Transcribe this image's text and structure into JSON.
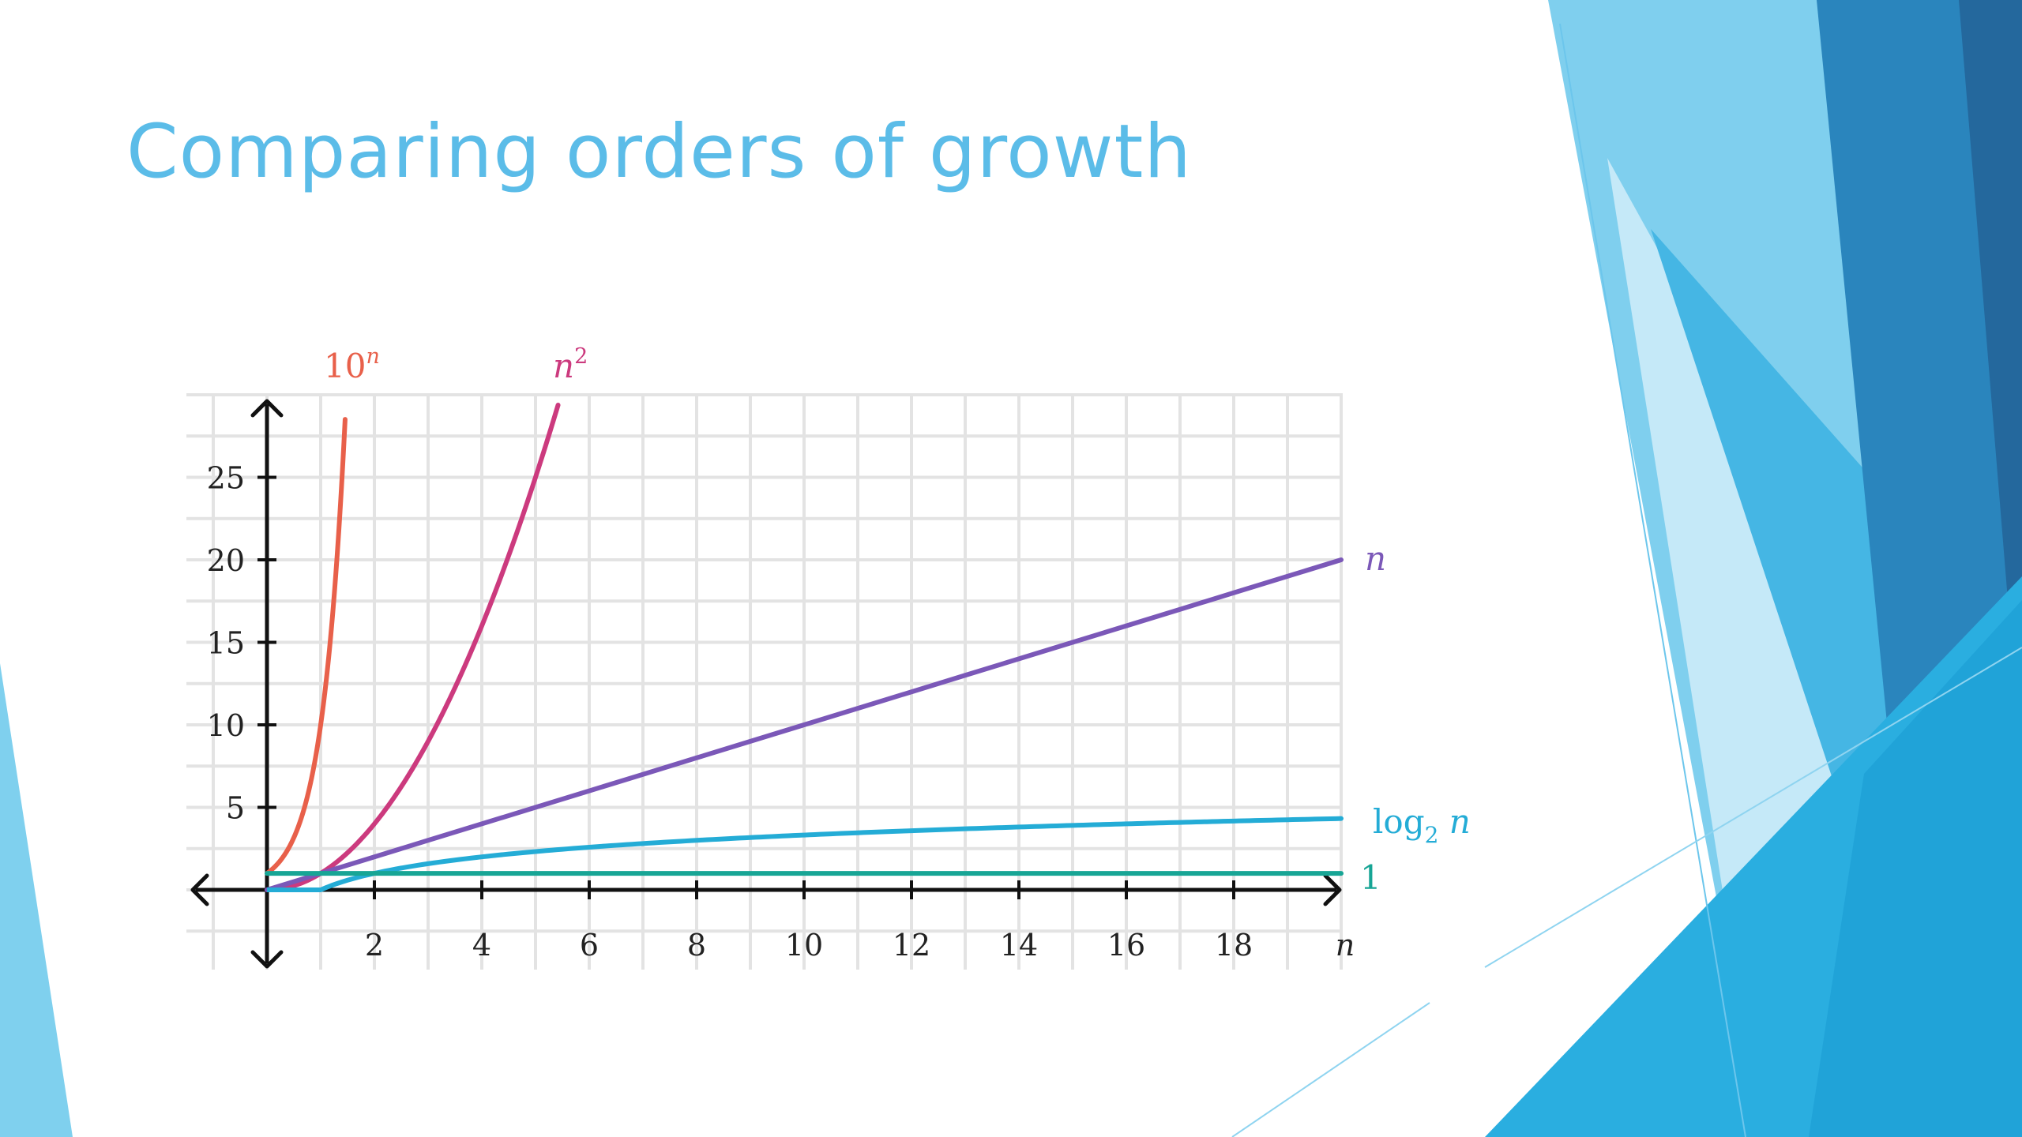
{
  "slide": {
    "title": "Comparing orders of growth"
  },
  "colors": {
    "title": "#5bbce8",
    "grid": "#e3e3e3",
    "axis": "#111111"
  },
  "chart_data": {
    "type": "line",
    "title": "",
    "xlabel": "n",
    "ylabel": "",
    "xlim": [
      -1.4,
      20
    ],
    "ylim": [
      -5,
      30
    ],
    "x_ticks": [
      2,
      4,
      6,
      8,
      10,
      12,
      14,
      16,
      18
    ],
    "y_ticks": [
      5,
      10,
      15,
      20,
      25
    ],
    "grid": true,
    "legend": "inline labels at line ends",
    "series": [
      {
        "name": "10ⁿ",
        "label_main": "10",
        "label_sup": "n",
        "function": "exponential-10",
        "color": "#e8604a",
        "x": [
          0,
          0.25,
          0.5,
          0.75,
          1,
          1.25,
          1.45
        ],
        "y": [
          1,
          1.78,
          3.16,
          5.62,
          10,
          17.8,
          28.2
        ]
      },
      {
        "name": "n²",
        "label_main": "n",
        "label_sup": "2",
        "function": "quadratic",
        "color": "#cc3a7e",
        "x": [
          0,
          1,
          2,
          3,
          4,
          5,
          5.4
        ],
        "y": [
          0,
          1,
          4,
          9,
          16,
          25,
          29.2
        ]
      },
      {
        "name": "n",
        "label_main": "n",
        "label_sup": "",
        "function": "linear",
        "color": "#7b58b8",
        "x": [
          0,
          20
        ],
        "y": [
          0,
          20
        ]
      },
      {
        "name": "log₂ n",
        "label_main": "log",
        "label_sub": "2",
        "label_tail": " n",
        "function": "log2",
        "color": "#24acd6",
        "x": [
          1,
          2,
          4,
          8,
          12,
          16,
          20
        ],
        "y": [
          0,
          1,
          2,
          3,
          3.58,
          4,
          4.32
        ]
      },
      {
        "name": "1",
        "label_main": "1",
        "label_sup": "",
        "function": "constant",
        "color": "#17a595",
        "x": [
          0,
          20
        ],
        "y": [
          1,
          1
        ]
      }
    ]
  }
}
